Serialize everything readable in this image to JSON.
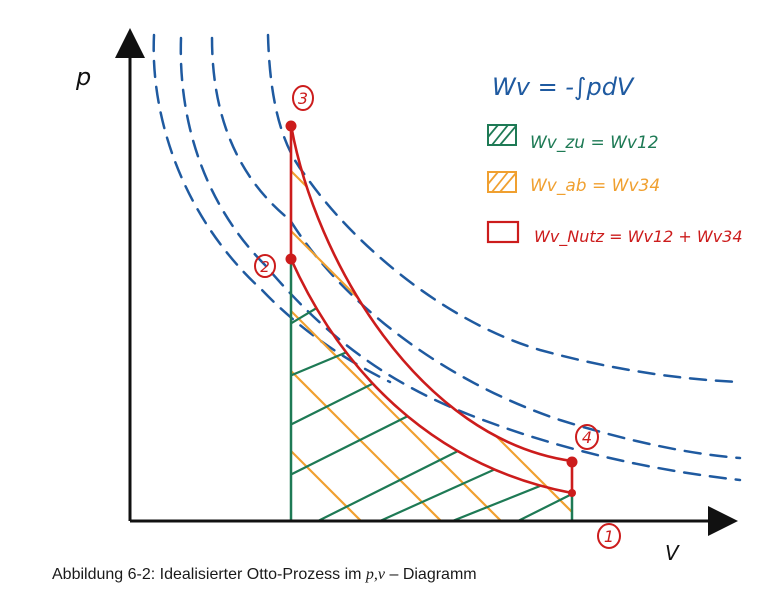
{
  "axes": {
    "y_label": "p",
    "x_label": "V"
  },
  "states": [
    "3",
    "2",
    "4",
    "1"
  ],
  "legend": {
    "formula": "Wv = -∫pdV",
    "green": "Wv_zu = Wv12",
    "orange": "Wv_ab = Wv34",
    "red": "Wv_Nutz = Wv12 + Wv34"
  },
  "caption": {
    "prefix": "Abbildung 6-2: Idealisierter Otto-Prozess im ",
    "vars": "p,v",
    "suffix": " – Diagramm"
  },
  "colors": {
    "axis": "#111111",
    "isotherm": "#1f5aa0",
    "green": "#1e7a55",
    "orange": "#f0a030",
    "red": "#cc1c1c"
  }
}
